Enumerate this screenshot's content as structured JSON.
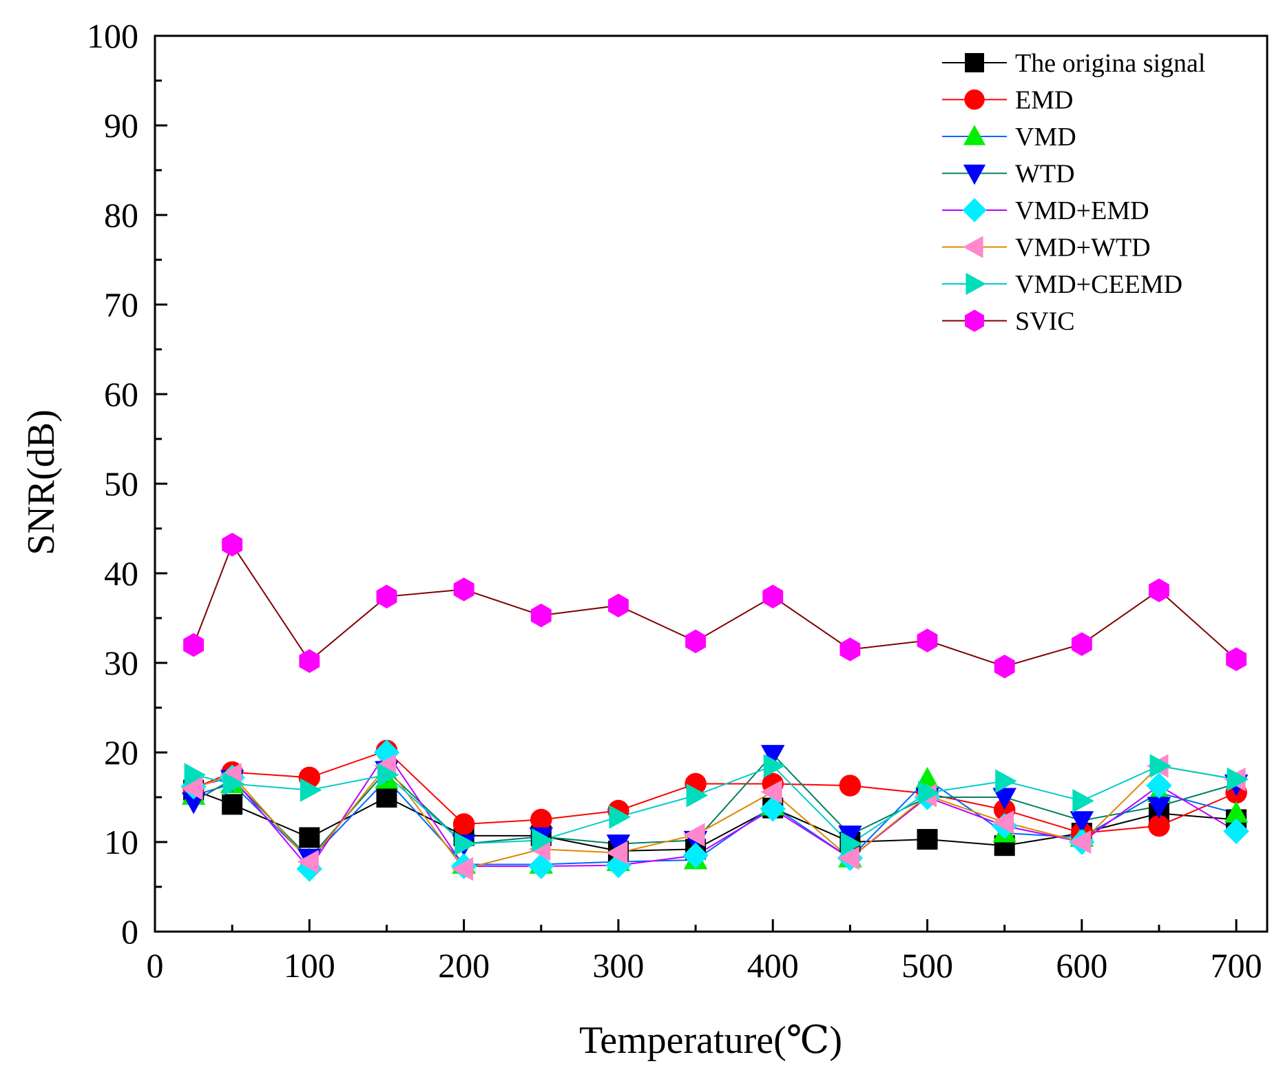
{
  "chart_data": {
    "type": "line",
    "title": "",
    "xlabel": "Temperature(℃)",
    "ylabel": "SNR(dB)",
    "xlim": [
      0,
      720
    ],
    "ylim": [
      0,
      100
    ],
    "x_ticks": [
      0,
      100,
      200,
      300,
      400,
      500,
      600,
      700
    ],
    "y_ticks": [
      0,
      10,
      20,
      30,
      40,
      50,
      60,
      70,
      80,
      90,
      100
    ],
    "legend_position": "top-right",
    "x": [
      25,
      50,
      100,
      150,
      200,
      250,
      300,
      350,
      400,
      450,
      500,
      550,
      600,
      650,
      700
    ],
    "series": [
      {
        "name": "The origina signal",
        "color": "#000000",
        "line_color": "#000000",
        "marker": "square",
        "values": [
          15.8,
          14.2,
          10.5,
          15.0,
          10.7,
          10.7,
          9.0,
          9.2,
          13.8,
          10.0,
          10.3,
          9.6,
          11.0,
          13.2,
          12.5
        ]
      },
      {
        "name": "EMD",
        "color": "#ff0000",
        "line_color": "#ff0000",
        "marker": "circle",
        "values": [
          16.0,
          17.8,
          17.2,
          20.2,
          12.0,
          12.5,
          13.5,
          16.5,
          16.5,
          16.3,
          15.4,
          13.6,
          11.0,
          11.8,
          15.5
        ]
      },
      {
        "name": "VMD",
        "color": "#00ee00",
        "line_color": "#0066ff",
        "marker": "triangle-up",
        "values": [
          15.2,
          16.5,
          8.0,
          17.0,
          7.5,
          7.5,
          7.8,
          8.0,
          14.0,
          8.2,
          17.0,
          11.0,
          10.5,
          15.5,
          13.2
        ]
      },
      {
        "name": "WTD",
        "color": "#0000ff",
        "line_color": "#008060",
        "marker": "triangle-down",
        "values": [
          14.5,
          17.0,
          8.2,
          18.0,
          9.8,
          10.6,
          9.8,
          10.2,
          19.8,
          10.8,
          15.0,
          15.0,
          12.4,
          14.0,
          16.5
        ]
      },
      {
        "name": "VMD+EMD",
        "color": "#00eeff",
        "line_color": "#bb00ff",
        "marker": "diamond",
        "values": [
          16.2,
          17.2,
          7.0,
          20.0,
          7.3,
          7.3,
          7.4,
          8.5,
          13.7,
          8.2,
          15.0,
          11.8,
          10.0,
          16.3,
          11.2
        ]
      },
      {
        "name": "VMD+WTD",
        "color": "#ff88cc",
        "line_color": "#dd8800",
        "marker": "triangle-left",
        "values": [
          16.0,
          17.5,
          7.8,
          18.5,
          7.0,
          9.2,
          8.8,
          10.8,
          15.6,
          8.2,
          15.2,
          12.2,
          10.0,
          18.5,
          17.0
        ]
      },
      {
        "name": "VMD+CEEMD",
        "color": "#00ddbb",
        "line_color": "#00cccc",
        "marker": "triangle-right",
        "values": [
          17.5,
          16.5,
          15.8,
          17.5,
          9.8,
          10.2,
          12.8,
          15.2,
          18.5,
          9.8,
          15.5,
          16.8,
          14.6,
          18.5,
          17.0
        ]
      },
      {
        "name": "SVIC",
        "color": "#ff00ff",
        "line_color": "#800000",
        "marker": "hexagon",
        "values": [
          32.0,
          43.2,
          30.2,
          37.4,
          38.2,
          35.3,
          36.4,
          32.4,
          37.4,
          31.5,
          32.5,
          29.6,
          32.1,
          38.1,
          30.4
        ]
      }
    ]
  }
}
